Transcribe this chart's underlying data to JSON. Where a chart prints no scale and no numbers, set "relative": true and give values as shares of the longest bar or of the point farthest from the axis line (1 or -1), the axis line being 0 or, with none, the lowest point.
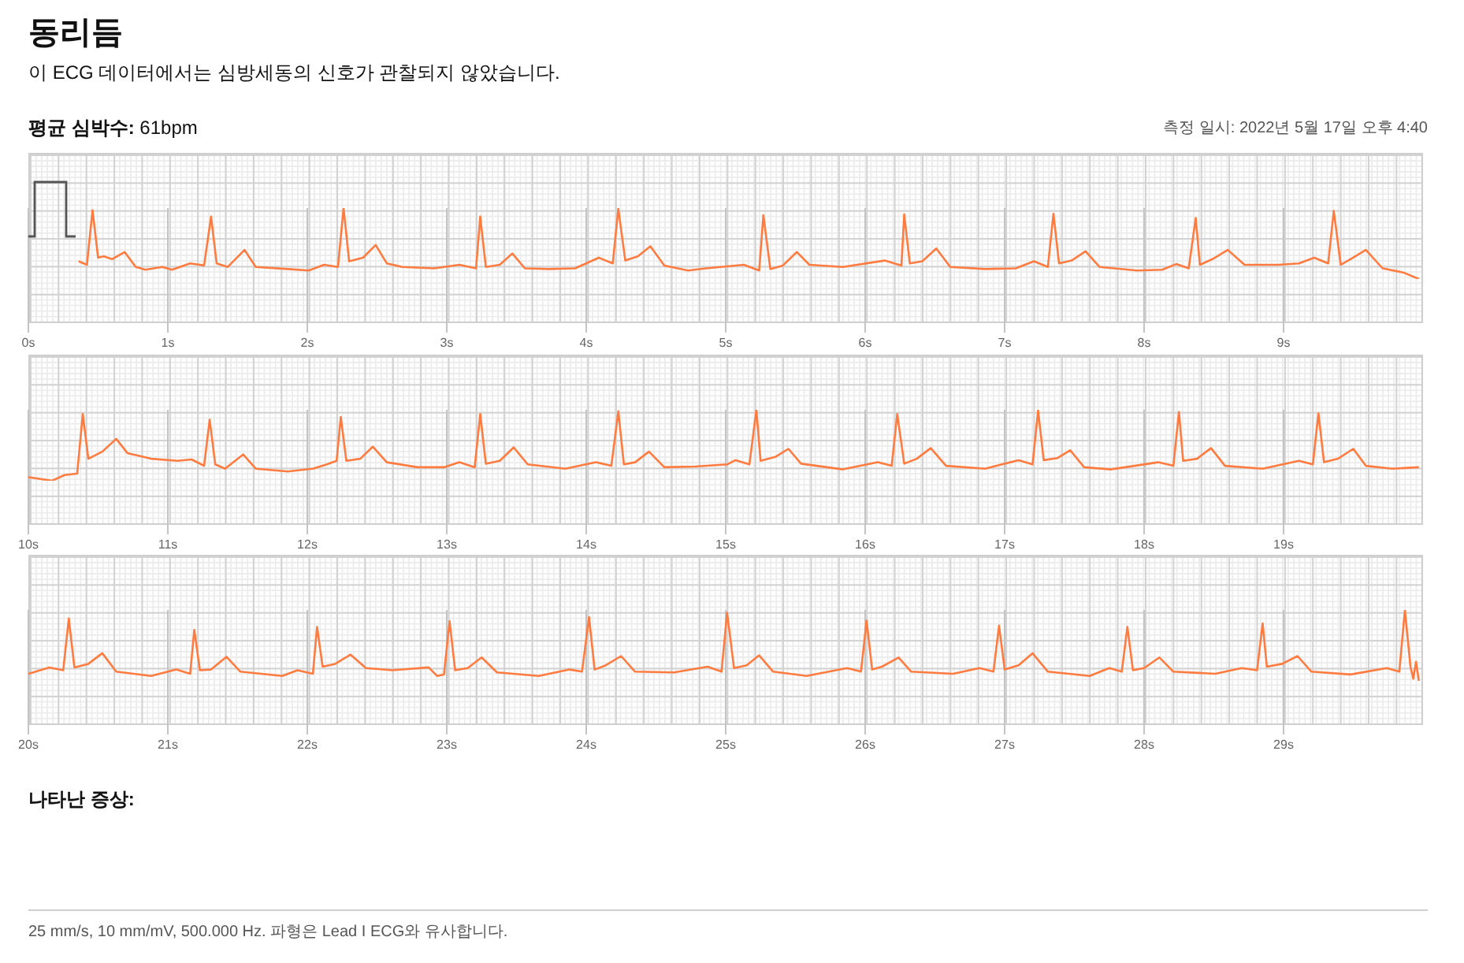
{
  "chart_data": [
    {
      "type": "line",
      "title": "동리듬",
      "subtitle": "이 ECG 데이터에서는 심방세동의 신호가 관찰되지 않았습니다.",
      "annotations": [
        "평균 심박수: 61bpm",
        "측정 일시: 2022년 5월 17일 오후 4:40"
      ],
      "relative": true,
      "grid": true,
      "marker": "none",
      "xlim": [
        0,
        10
      ],
      "xticks": [
        {
          "value": 0,
          "label": "0s"
        },
        {
          "value": 1,
          "label": "1s"
        },
        {
          "value": 2,
          "label": "2s"
        },
        {
          "value": 3,
          "label": "3s"
        },
        {
          "value": 4,
          "label": "4s"
        },
        {
          "value": 5,
          "label": "5s"
        },
        {
          "value": 6,
          "label": "6s"
        },
        {
          "value": 7,
          "label": "7s"
        },
        {
          "value": 8,
          "label": "8s"
        },
        {
          "value": 9,
          "label": "9s"
        }
      ],
      "x": [
        0.36,
        0.42,
        0.46,
        0.5,
        0.54,
        0.6,
        0.69,
        0.77,
        0.84,
        0.96,
        1.03,
        1.16,
        1.26,
        1.31,
        1.35,
        1.43,
        1.55,
        1.63,
        1.86,
        2.01,
        2.12,
        2.22,
        2.26,
        2.3,
        2.4,
        2.49,
        2.57,
        2.68,
        2.91,
        3.09,
        3.21,
        3.24,
        3.28,
        3.38,
        3.47,
        3.56,
        3.73,
        3.92,
        4.09,
        4.19,
        4.23,
        4.28,
        4.37,
        4.46,
        4.56,
        4.73,
        4.86,
        5.13,
        5.24,
        5.27,
        5.32,
        5.41,
        5.51,
        5.6,
        5.84,
        6.14,
        6.26,
        6.28,
        6.32,
        6.41,
        6.51,
        6.61,
        6.86,
        7.08,
        7.21,
        7.31,
        7.35,
        7.39,
        7.48,
        7.58,
        7.68,
        7.95,
        8.13,
        8.23,
        8.32,
        8.37,
        8.4,
        8.49,
        8.6,
        8.72,
        8.96,
        9.11,
        9.22,
        9.32,
        9.36,
        9.41,
        9.48,
        9.59,
        9.71,
        9.86,
        9.97
      ],
      "series": [
        {
          "color": "#ff7b3f",
          "values": [
            0.25,
            0.2,
            0.97,
            0.3,
            0.32,
            0.28,
            0.38,
            0.17,
            0.13,
            0.17,
            0.13,
            0.22,
            0.19,
            0.88,
            0.22,
            0.17,
            0.41,
            0.17,
            0.14,
            0.12,
            0.2,
            0.17,
            1,
            0.25,
            0.3,
            0.48,
            0.22,
            0.17,
            0.15,
            0.2,
            0.15,
            0.88,
            0.17,
            0.2,
            0.36,
            0.15,
            0.14,
            0.15,
            0.3,
            0.22,
            0.99,
            0.26,
            0.32,
            0.46,
            0.19,
            0.12,
            0.15,
            0.2,
            0.12,
            0.9,
            0.14,
            0.19,
            0.38,
            0.2,
            0.17,
            0.26,
            0.19,
            0.91,
            0.22,
            0.25,
            0.43,
            0.17,
            0.14,
            0.15,
            0.25,
            0.17,
            0.92,
            0.22,
            0.26,
            0.39,
            0.17,
            0.12,
            0.13,
            0.21,
            0.15,
            0.86,
            0.2,
            0.28,
            0.41,
            0.2,
            0.2,
            0.22,
            0.3,
            0.22,
            0.96,
            0.2,
            0.28,
            0.41,
            0.15,
            0.09,
            0
          ]
        }
      ]
    },
    {
      "type": "line",
      "relative": true,
      "grid": true,
      "marker": "none",
      "xlim": [
        10,
        20
      ],
      "xticks": [
        {
          "value": 10,
          "label": "10s"
        },
        {
          "value": 11,
          "label": "11s"
        },
        {
          "value": 12,
          "label": "12s"
        },
        {
          "value": 13,
          "label": "13s"
        },
        {
          "value": 14,
          "label": "14s"
        },
        {
          "value": 15,
          "label": "15s"
        },
        {
          "value": 16,
          "label": "16s"
        },
        {
          "value": 17,
          "label": "17s"
        },
        {
          "value": 18,
          "label": "18s"
        },
        {
          "value": 19,
          "label": "19s"
        }
      ],
      "x": [
        10,
        10.17,
        10.26,
        10.35,
        10.39,
        10.43,
        10.53,
        10.63,
        10.71,
        10.88,
        11.07,
        11.17,
        11.26,
        11.3,
        11.34,
        11.41,
        11.54,
        11.63,
        11.86,
        12.04,
        12.14,
        12.21,
        12.24,
        12.28,
        12.38,
        12.47,
        12.57,
        12.79,
        12.98,
        13.09,
        13.2,
        13.24,
        13.28,
        13.38,
        13.48,
        13.58,
        13.85,
        14.07,
        14.18,
        14.23,
        14.27,
        14.35,
        14.45,
        14.56,
        14.78,
        15.01,
        15.07,
        15.17,
        15.22,
        15.25,
        15.36,
        15.45,
        15.54,
        15.84,
        16.09,
        16.19,
        16.23,
        16.28,
        16.37,
        16.47,
        16.58,
        16.86,
        17.1,
        17.2,
        17.24,
        17.28,
        17.38,
        17.47,
        17.57,
        17.76,
        18.1,
        18.21,
        18.25,
        18.28,
        18.38,
        18.48,
        18.58,
        18.85,
        19.11,
        19.21,
        19.25,
        19.29,
        19.39,
        19.5,
        19.59,
        19.78,
        19.97
      ],
      "series": [
        {
          "color": "#ff7b3f",
          "values": [
            0.05,
            0,
            0.08,
            0.1,
            0.94,
            0.31,
            0.41,
            0.59,
            0.39,
            0.31,
            0.28,
            0.3,
            0.21,
            0.86,
            0.23,
            0.17,
            0.37,
            0.17,
            0.13,
            0.17,
            0.23,
            0.28,
            0.9,
            0.28,
            0.31,
            0.48,
            0.26,
            0.19,
            0.19,
            0.26,
            0.19,
            0.94,
            0.24,
            0.28,
            0.47,
            0.23,
            0.17,
            0.26,
            0.21,
            0.98,
            0.23,
            0.26,
            0.41,
            0.19,
            0.2,
            0.23,
            0.29,
            0.23,
            1,
            0.28,
            0.34,
            0.45,
            0.24,
            0.16,
            0.26,
            0.21,
            0.94,
            0.24,
            0.31,
            0.46,
            0.21,
            0.17,
            0.29,
            0.23,
            0.99,
            0.29,
            0.32,
            0.43,
            0.19,
            0.16,
            0.26,
            0.21,
            0.97,
            0.28,
            0.31,
            0.46,
            0.21,
            0.17,
            0.28,
            0.23,
            0.95,
            0.26,
            0.31,
            0.45,
            0.21,
            0.17,
            0.19
          ]
        }
      ]
    },
    {
      "type": "line",
      "annotations": [
        "나타난 증상:",
        "25 mm/s, 10 mm/mV, 500.000 Hz. 파형은 Lead I ECG와 유사합니다."
      ],
      "relative": true,
      "grid": true,
      "marker": "none",
      "xlim": [
        20,
        30
      ],
      "xticks": [
        {
          "value": 20,
          "label": "20s"
        },
        {
          "value": 21,
          "label": "21s"
        },
        {
          "value": 22,
          "label": "22s"
        },
        {
          "value": 23,
          "label": "23s"
        },
        {
          "value": 24,
          "label": "24s"
        },
        {
          "value": 25,
          "label": "25s"
        },
        {
          "value": 26,
          "label": "26s"
        },
        {
          "value": 27,
          "label": "27s"
        },
        {
          "value": 28,
          "label": "28s"
        },
        {
          "value": 29,
          "label": "29s"
        }
      ],
      "x": [
        20,
        20.15,
        20.25,
        20.29,
        20.33,
        20.43,
        20.53,
        20.63,
        20.88,
        21.06,
        21.16,
        21.19,
        21.23,
        21.31,
        21.42,
        21.52,
        21.82,
        21.93,
        22.04,
        22.07,
        22.11,
        22.2,
        22.31,
        22.42,
        22.61,
        22.87,
        22.93,
        22.98,
        23.02,
        23.06,
        23.15,
        23.25,
        23.36,
        23.66,
        23.88,
        23.97,
        24.02,
        24.06,
        24.14,
        24.25,
        24.35,
        24.63,
        24.87,
        24.97,
        25.01,
        25.06,
        25.15,
        25.24,
        25.34,
        25.58,
        25.87,
        25.97,
        26.01,
        26.05,
        26.12,
        26.24,
        26.33,
        26.63,
        26.82,
        26.92,
        26.96,
        27,
        27.1,
        27.2,
        27.31,
        27.61,
        27.75,
        27.84,
        27.88,
        27.92,
        28,
        28.11,
        28.21,
        28.51,
        28.7,
        28.81,
        28.85,
        28.88,
        28.99,
        29.1,
        29.2,
        29.48,
        29.74,
        29.83,
        29.87,
        29.91,
        29.93,
        29.95,
        29.97
      ],
      "series": [
        {
          "color": "#ff7b3f",
          "values": [
            0.1,
            0.19,
            0.15,
            0.88,
            0.19,
            0.24,
            0.39,
            0.13,
            0.07,
            0.16,
            0.1,
            0.72,
            0.15,
            0.16,
            0.34,
            0.13,
            0.07,
            0.15,
            0.1,
            0.76,
            0.2,
            0.24,
            0.37,
            0.18,
            0.15,
            0.19,
            0.07,
            0.09,
            0.84,
            0.15,
            0.18,
            0.33,
            0.12,
            0.07,
            0.16,
            0.13,
            0.9,
            0.16,
            0.22,
            0.35,
            0.13,
            0.12,
            0.2,
            0.13,
            0.96,
            0.18,
            0.22,
            0.36,
            0.13,
            0.07,
            0.18,
            0.13,
            0.85,
            0.16,
            0.2,
            0.33,
            0.13,
            0.1,
            0.18,
            0.13,
            0.78,
            0.16,
            0.22,
            0.39,
            0.13,
            0.07,
            0.18,
            0.13,
            0.76,
            0.15,
            0.18,
            0.33,
            0.13,
            0.1,
            0.18,
            0.15,
            0.81,
            0.2,
            0.24,
            0.35,
            0.13,
            0.09,
            0.18,
            0.13,
            1,
            0.2,
            0.03,
            0.27,
            0
          ]
        }
      ]
    }
  ]
}
